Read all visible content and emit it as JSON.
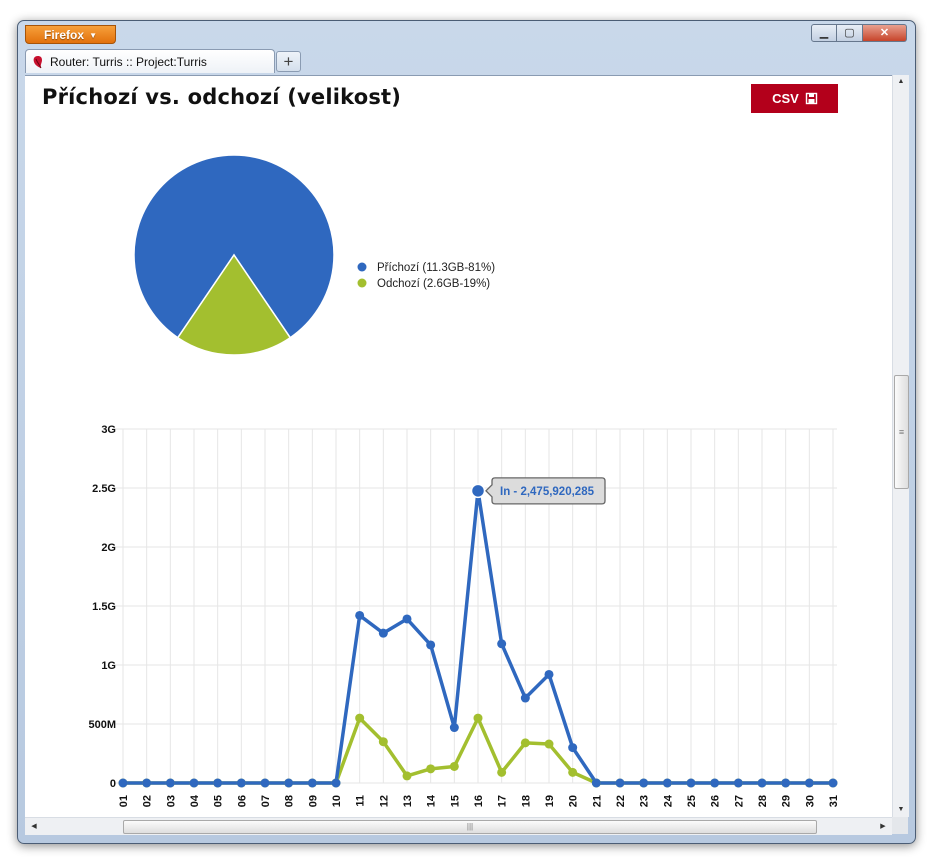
{
  "browser": {
    "menu_button": "Firefox",
    "tab_title": "Router: Turris :: Project:Turris",
    "new_tab": "+",
    "controls": {
      "minimize": "▁",
      "maximize": "▢",
      "close": "✕"
    }
  },
  "page": {
    "title": "Příchozí vs. odchozí (velikost)",
    "csv_label": "CSV"
  },
  "pie": {
    "legend": [
      {
        "label": "Příchozí (11.3GB-81%)",
        "color": "#2f68bf",
        "percent": 81
      },
      {
        "label": "Odchozí (2.6GB-19%)",
        "color": "#a3bf2f",
        "percent": 19
      }
    ]
  },
  "tooltip": {
    "text": "In - 2,475,920,285"
  },
  "chart_data": {
    "type": "line",
    "x": [
      "01",
      "02",
      "03",
      "04",
      "05",
      "06",
      "07",
      "08",
      "09",
      "10",
      "11",
      "12",
      "13",
      "14",
      "15",
      "16",
      "17",
      "18",
      "19",
      "20",
      "21",
      "22",
      "23",
      "24",
      "25",
      "26",
      "27",
      "28",
      "29",
      "30",
      "31"
    ],
    "yticks": [
      "0",
      "500M",
      "1G",
      "1.5G",
      "2G",
      "2.5G",
      "3G"
    ],
    "ylim": [
      0,
      3000000000
    ],
    "grid": true,
    "series": [
      {
        "name": "In",
        "color": "#2f68bf",
        "values": [
          0,
          0,
          0,
          0,
          0,
          0,
          0,
          0,
          0,
          0,
          1420000000,
          1270000000,
          1390000000,
          1170000000,
          470000000,
          2475920285,
          1180000000,
          720000000,
          920000000,
          300000000,
          0,
          0,
          0,
          0,
          0,
          0,
          0,
          0,
          0,
          0,
          0
        ]
      },
      {
        "color": "#a3bf2f",
        "values": [
          0,
          0,
          0,
          0,
          0,
          0,
          0,
          0,
          0,
          0,
          550000000,
          350000000,
          60000000,
          120000000,
          140000000,
          550000000,
          90000000,
          340000000,
          330000000,
          90000000,
          0,
          0,
          0,
          0,
          0,
          0,
          0,
          0,
          0,
          0,
          0
        ]
      }
    ]
  }
}
